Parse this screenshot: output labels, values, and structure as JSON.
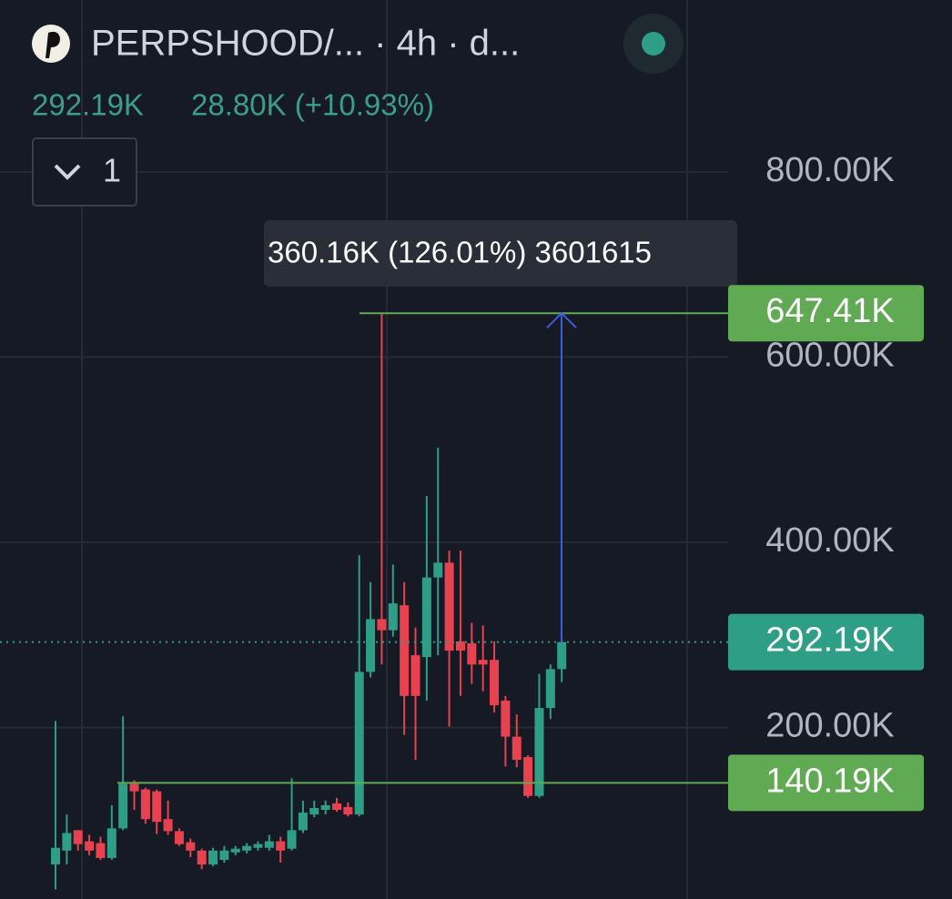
{
  "chart_data": {
    "type": "candlestick",
    "title": "PERPSHOOD/...  · 4h · d...",
    "price_text": "292.19K",
    "change_text": "28.80K (+10.93%)",
    "indicator_count": "1",
    "measure_label": "360.16K (126.01%) 3601615",
    "up_color": "#2f9e86",
    "down_color": "#e8414f",
    "open": [
      52,
      67,
      89,
      77,
      75,
      59,
      91,
      139,
      133,
      131,
      101,
      88,
      76,
      67,
      52,
      57,
      65,
      67,
      70,
      70,
      77,
      69,
      89,
      106,
      111,
      118,
      114,
      106,
      260,
      317,
      305,
      332,
      278,
      276,
      362,
      378,
      293,
      291,
      273,
      273,
      229,
      190,
      168,
      126,
      221,
      263
    ],
    "high": [
      207,
      106,
      89,
      84,
      82,
      116,
      212,
      143,
      135,
      133,
      121,
      91,
      80,
      69,
      70,
      72,
      72,
      75,
      77,
      84,
      82,
      145,
      121,
      121,
      121,
      124,
      119,
      386,
      357,
      647.41,
      376,
      357,
      308,
      450,
      502,
      391,
      391,
      313,
      310,
      293,
      234,
      214,
      170,
      258,
      268,
      296
    ],
    "low": [
      25,
      52,
      67,
      62,
      57,
      57,
      89,
      111,
      96,
      85,
      84,
      72,
      60,
      47,
      50,
      54,
      62,
      64,
      67,
      67,
      54,
      67,
      86,
      103,
      106,
      109,
      104,
      104,
      254,
      268,
      298,
      192,
      165,
      229,
      278,
      201,
      234,
      247,
      239,
      216,
      158,
      157,
      124,
      124,
      209,
      249
    ],
    "close": [
      70,
      86,
      74,
      67,
      59,
      91,
      139,
      131,
      101,
      98,
      88,
      74,
      67,
      52,
      67,
      67,
      69,
      72,
      74,
      77,
      67,
      89,
      108,
      113,
      116,
      111,
      106,
      260,
      317,
      305,
      334,
      234,
      234,
      362,
      378,
      283,
      283,
      268,
      268,
      224,
      190,
      165,
      126,
      221,
      263,
      292.19
    ],
    "ylim": [
      14.7,
      985.7
    ],
    "yticks": [
      {
        "value": 200,
        "label": "200.00K"
      },
      {
        "value": 400,
        "label": "400.00K"
      },
      {
        "value": 600,
        "label": "600.00K"
      },
      {
        "value": 800,
        "label": "800.00K"
      }
    ],
    "grid": true,
    "last_price": {
      "value": 292.19,
      "label": "292.19K",
      "color": "#2f9e86"
    },
    "price_lines": [
      {
        "value": 647.41,
        "label": "647.41K",
        "color": "#5faa52"
      },
      {
        "value": 140.19,
        "label": "140.19K",
        "color": "#5faa52"
      }
    ],
    "measure_color": "#3d5ce0"
  }
}
